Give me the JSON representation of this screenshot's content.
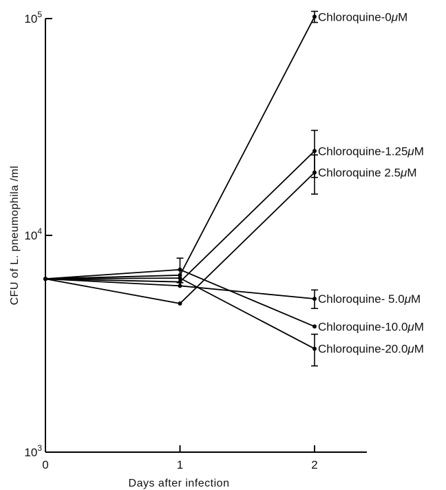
{
  "chart_data": {
    "type": "line",
    "title": "",
    "xlabel": "Days after infection",
    "ylabel": "CFU of L. pneumophila /ml",
    "y_scale": "log",
    "xlim": [
      0,
      2.3
    ],
    "ylim": [
      1000,
      100000
    ],
    "x_ticks": [
      0,
      1,
      2
    ],
    "x_tick_labels": [
      "0",
      "1",
      "2"
    ],
    "y_ticks": [
      {
        "value": 1000,
        "base": "10",
        "exp": "3"
      },
      {
        "value": 10000,
        "base": "10",
        "exp": "4"
      },
      {
        "value": 100000,
        "base": "10",
        "exp": "5"
      }
    ],
    "grid": false,
    "legend": "none (series labelled at line ends)",
    "x": [
      0,
      1,
      2
    ],
    "series": [
      {
        "name": "Chloroquine-0μM",
        "label_parts": [
          "Chloroquine-0",
          "μ",
          "M"
        ],
        "values": [
          6300,
          6550,
          102000
        ],
        "error": [
          null,
          null,
          6000
        ]
      },
      {
        "name": "Chloroquine-1.25μM",
        "label_parts": [
          "Chloroquine-1.25",
          "μ",
          "M"
        ],
        "values": [
          6300,
          6100,
          24500
        ],
        "error": [
          null,
          null,
          6000
        ]
      },
      {
        "name": "Chloroquine 2.5μM",
        "label_parts": [
          "Chloroquine 2.5",
          "μ",
          "M"
        ],
        "values": [
          6300,
          4850,
          19500
        ],
        "error": [
          null,
          null,
          4000
        ]
      },
      {
        "name": "Chloroquine- 5.0μM",
        "label_parts": [
          "Chloroquine- 5.0",
          "μ",
          "M"
        ],
        "values": [
          6300,
          5850,
          5100
        ],
        "error": [
          null,
          null,
          500
        ]
      },
      {
        "name": "Chloroquine-10.0μM",
        "label_parts": [
          "Chloroquine-10.0",
          "μ",
          "M"
        ],
        "values": [
          6300,
          6950,
          3800
        ],
        "error": [
          null,
          900,
          null
        ]
      },
      {
        "name": "Chloroquine-20.0μM",
        "label_parts": [
          "Chloroquine-20.0",
          "μ",
          "M"
        ],
        "values": [
          6300,
          6350,
          3000
        ],
        "error": [
          null,
          null,
          500
        ]
      }
    ]
  }
}
